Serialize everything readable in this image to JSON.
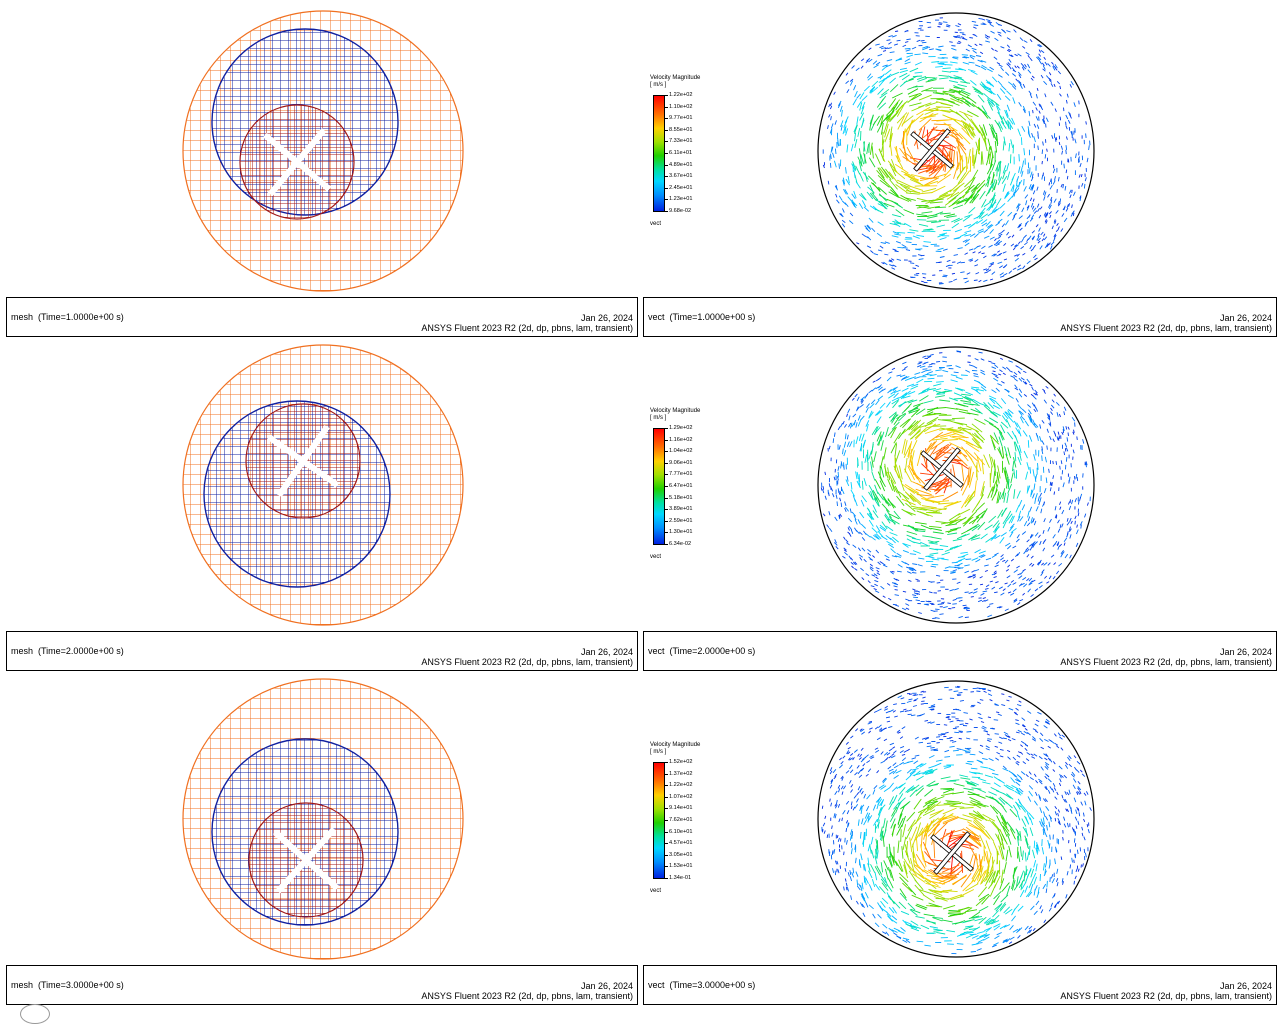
{
  "panels": [
    {
      "mesh": {
        "label": "mesh  (Time=1.0000e+00 s)",
        "date": "Jan 26, 2024",
        "software": "ANSYS Fluent 2023 R2 (2d, dp, pbns, lam, transient)"
      },
      "vect": {
        "label": "vect  (Time=1.0000e+00 s)",
        "date": "Jan 26, 2024",
        "software": "ANSYS Fluent 2023 R2 (2d, dp, pbns, lam, transient)"
      },
      "legend": {
        "title": "Velocity Magnitude",
        "units": "[ m/s ]",
        "var": "vect",
        "ticks": [
          "1.22e+02",
          "1.10e+02",
          "9.77e+01",
          "8.55e+01",
          "7.33e+01",
          "6.11e+01",
          "4.89e+01",
          "3.67e+01",
          "2.45e+01",
          "1.23e+01",
          "9.68e-02"
        ]
      }
    },
    {
      "mesh": {
        "label": "mesh  (Time=2.0000e+00 s)",
        "date": "Jan 26, 2024",
        "software": "ANSYS Fluent 2023 R2 (2d, dp, pbns, lam, transient)"
      },
      "vect": {
        "label": "vect  (Time=2.0000e+00 s)",
        "date": "Jan 26, 2024",
        "software": "ANSYS Fluent 2023 R2 (2d, dp, pbns, lam, transient)"
      },
      "legend": {
        "title": "Velocity Magnitude",
        "units": "[ m/s ]",
        "var": "vect",
        "ticks": [
          "1.29e+02",
          "1.16e+02",
          "1.04e+02",
          "9.06e+01",
          "7.77e+01",
          "6.47e+01",
          "5.18e+01",
          "3.89e+01",
          "2.59e+01",
          "1.30e+01",
          "6.34e-02"
        ]
      }
    },
    {
      "mesh": {
        "label": "mesh  (Time=3.0000e+00 s)",
        "date": "Jan 26, 2024",
        "software": "ANSYS Fluent 2023 R2 (2d, dp, pbns, lam, transient)"
      },
      "vect": {
        "label": "vect  (Time=3.0000e+00 s)",
        "date": "Jan 26, 2024",
        "software": "ANSYS Fluent 2023 R2 (2d, dp, pbns, lam, transient)"
      },
      "legend": {
        "title": "Velocity Magnitude",
        "units": "[ m/s ]",
        "var": "vect",
        "ticks": [
          "1.52e+02",
          "1.37e+02",
          "1.22e+02",
          "1.07e+02",
          "9.14e+01",
          "7.62e+01",
          "6.10e+01",
          "4.57e+01",
          "3.05e+01",
          "1.53e+01",
          "1.34e-01"
        ]
      }
    }
  ],
  "colors": {
    "outer_mesh": "#f07020",
    "middle_mesh": "#1020a0",
    "inner_mesh": "#a01818",
    "domain_border": "#000000"
  }
}
